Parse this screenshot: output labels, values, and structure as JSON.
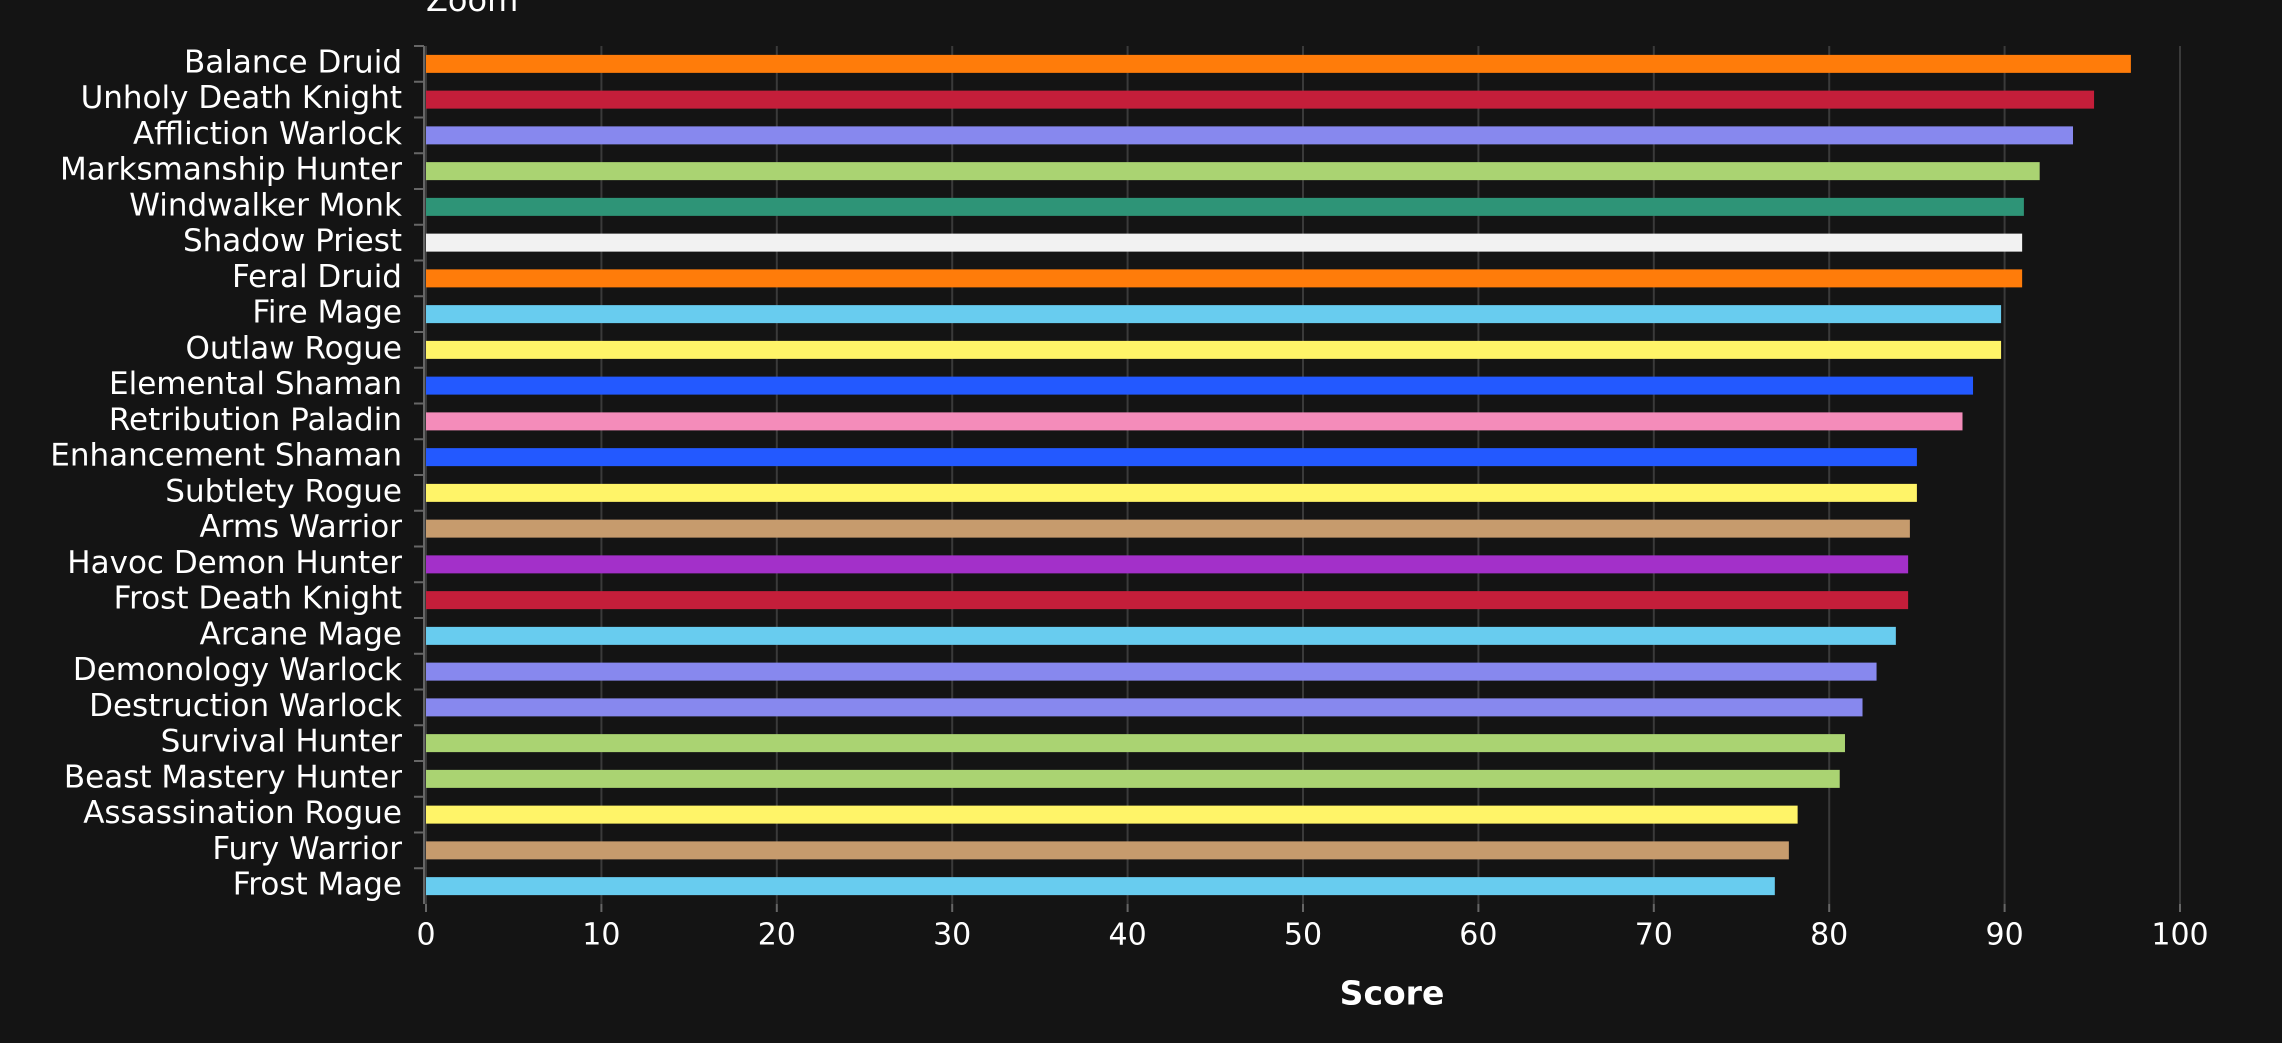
{
  "chart_data": {
    "type": "hbar",
    "zoom_label": "Zoom",
    "xlabel": "Score",
    "categories": [
      "Balance Druid",
      "Unholy Death Knight",
      "Affliction Warlock",
      "Marksmanship Hunter",
      "Windwalker Monk",
      "Shadow Priest",
      "Feral Druid",
      "Fire Mage",
      "Outlaw Rogue",
      "Elemental Shaman",
      "Retribution Paladin",
      "Enhancement Shaman",
      "Subtlety Rogue",
      "Arms Warrior",
      "Havoc Demon Hunter",
      "Frost Death Knight",
      "Arcane Mage",
      "Demonology Warlock",
      "Destruction Warlock",
      "Survival Hunter",
      "Beast Mastery Hunter",
      "Assassination Rogue",
      "Fury Warrior",
      "Frost Mage"
    ],
    "values": [
      97.2,
      95.1,
      93.9,
      92.0,
      91.1,
      91.0,
      91.0,
      89.8,
      89.8,
      88.2,
      87.6,
      85.0,
      85.0,
      84.6,
      84.5,
      84.5,
      83.8,
      82.7,
      81.9,
      80.9,
      80.6,
      78.2,
      77.7,
      76.9
    ],
    "colors": [
      "#ff7c0a",
      "#c41e3a",
      "#8788ee",
      "#aad372",
      "#2e9477",
      "#f2f2f2",
      "#ff7c0a",
      "#68ccef",
      "#fff468",
      "#2359ff",
      "#f48cba",
      "#2359ff",
      "#fff468",
      "#c69b6d",
      "#a330c9",
      "#c41e3a",
      "#68ccef",
      "#8788ee",
      "#8788ee",
      "#aad372",
      "#aad372",
      "#fff468",
      "#c69b6d",
      "#68ccef"
    ],
    "xlim": [
      0,
      100
    ],
    "xticks": [
      0,
      10,
      20,
      30,
      40,
      50,
      60,
      70,
      80,
      90,
      100
    ],
    "grid": true
  }
}
